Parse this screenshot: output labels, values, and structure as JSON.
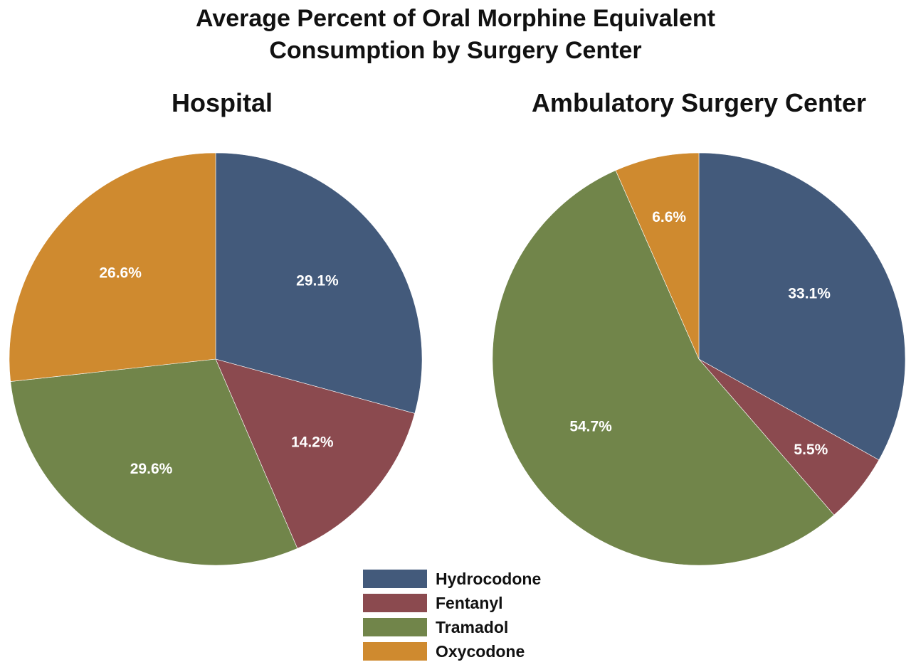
{
  "title_lines": [
    "Average Percent of Oral Morphine Equivalent",
    "Consumption by Surgery Center"
  ],
  "legend": [
    {
      "label": "Hydrocodone",
      "color": "#435a7b"
    },
    {
      "label": "Fentanyl",
      "color": "#8b4a4f"
    },
    {
      "label": "Tramadol",
      "color": "#71854a"
    },
    {
      "label": "Oxycodone",
      "color": "#cf8a2f"
    }
  ],
  "chart_data": [
    {
      "type": "pie",
      "title": "Hospital",
      "categories": [
        "Hydrocodone",
        "Fentanyl",
        "Tramadol",
        "Oxycodone"
      ],
      "values": [
        29.1,
        14.2,
        29.6,
        26.6
      ],
      "labels": [
        "29.1%",
        "14.2%",
        "29.6%",
        "26.6%"
      ],
      "colors": [
        "#435a7b",
        "#8b4a4f",
        "#71854a",
        "#cf8a2f"
      ],
      "start": "12 o'clock",
      "direction": "clockwise"
    },
    {
      "type": "pie",
      "title": "Ambulatory Surgery Center",
      "categories": [
        "Hydrocodone",
        "Fentanyl",
        "Tramadol",
        "Oxycodone"
      ],
      "values": [
        33.1,
        5.5,
        54.7,
        6.6
      ],
      "labels": [
        "33.1%",
        "5.5%",
        "54.7%",
        "6.6%"
      ],
      "colors": [
        "#435a7b",
        "#8b4a4f",
        "#71854a",
        "#cf8a2f"
      ],
      "start": "12 o'clock",
      "direction": "clockwise"
    }
  ]
}
